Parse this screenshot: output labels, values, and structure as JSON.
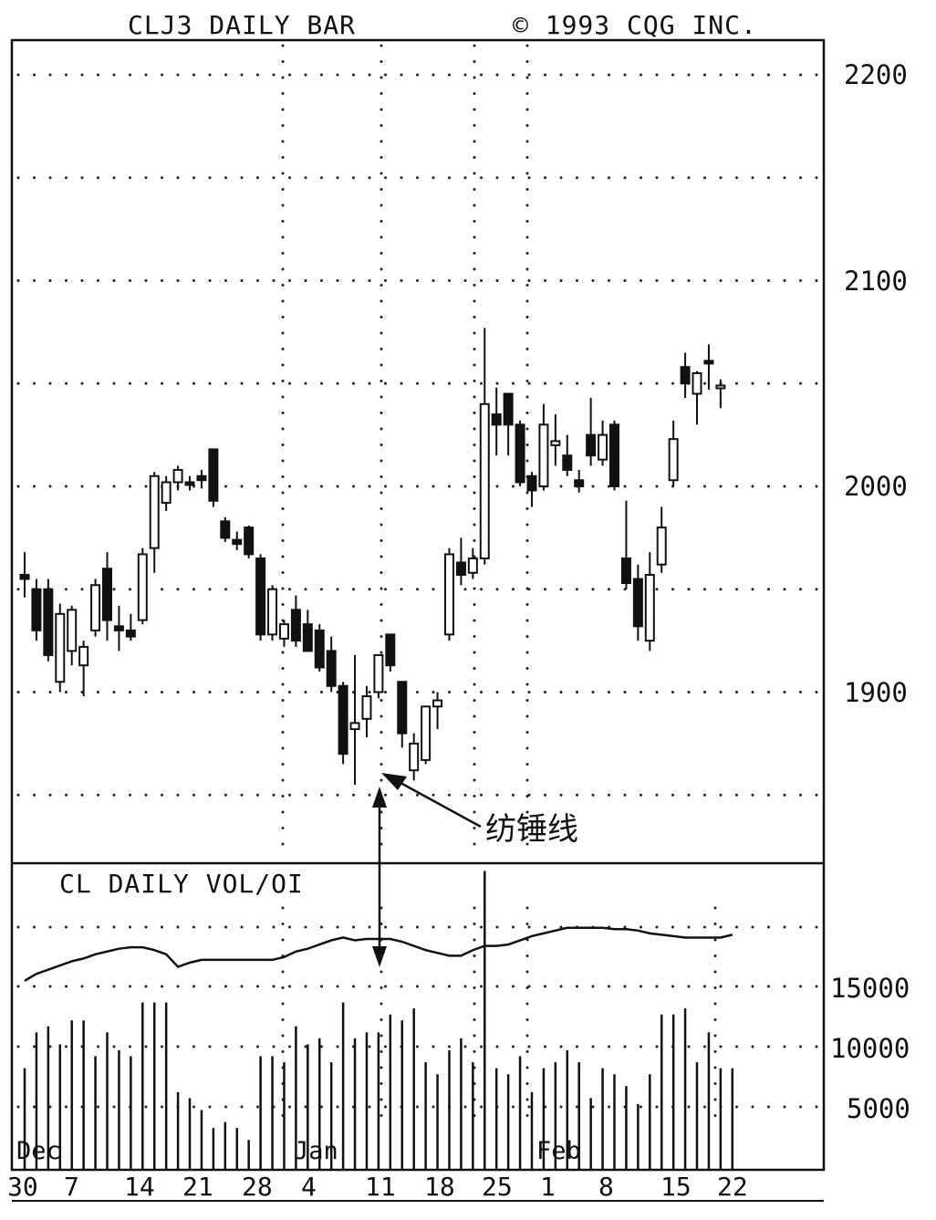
{
  "chart_data": [
    {
      "type": "candlestick",
      "title": "CLJ3 DAILY BAR",
      "copyright": "© 1993 CQG INC.",
      "ylim": [
        1820,
        2230
      ],
      "y_ticks": [
        1900,
        2000,
        2100,
        2200
      ],
      "y_tick_labels": [
        "1900",
        "2000",
        "2100",
        "2200"
      ],
      "grid": "dotted",
      "candles": [
        {
          "date": "Nov 30",
          "open": 1957,
          "high": 1968,
          "low": 1946,
          "close": 1955
        },
        {
          "date": "Dec 1",
          "open": 1950,
          "high": 1955,
          "low": 1925,
          "close": 1930
        },
        {
          "date": "Dec 2",
          "open": 1950,
          "high": 1955,
          "low": 1915,
          "close": 1918
        },
        {
          "date": "Dec 3",
          "open": 1905,
          "high": 1943,
          "low": 1900,
          "close": 1938
        },
        {
          "date": "Dec 4",
          "open": 1920,
          "high": 1942,
          "low": 1913,
          "close": 1940
        },
        {
          "date": "Dec 7",
          "open": 1913,
          "high": 1925,
          "low": 1898,
          "close": 1922
        },
        {
          "date": "Dec 8",
          "open": 1930,
          "high": 1955,
          "low": 1927,
          "close": 1952
        },
        {
          "date": "Dec 9",
          "open": 1960,
          "high": 1968,
          "low": 1925,
          "close": 1935
        },
        {
          "date": "Dec 10",
          "open": 1932,
          "high": 1942,
          "low": 1920,
          "close": 1930
        },
        {
          "date": "Dec 11",
          "open": 1930,
          "high": 1938,
          "low": 1925,
          "close": 1927
        },
        {
          "date": "Dec 14",
          "open": 1935,
          "high": 1970,
          "low": 1933,
          "close": 1967
        },
        {
          "date": "Dec 15",
          "open": 1970,
          "high": 2007,
          "low": 1958,
          "close": 2005
        },
        {
          "date": "Dec 16",
          "open": 1992,
          "high": 2005,
          "low": 1988,
          "close": 2002
        },
        {
          "date": "Dec 17",
          "open": 2002,
          "high": 2010,
          "low": 1998,
          "close": 2008
        },
        {
          "date": "Dec 18",
          "open": 2002,
          "high": 2005,
          "low": 1998,
          "close": 2001
        },
        {
          "date": "Dec 21",
          "open": 2005,
          "high": 2008,
          "low": 1999,
          "close": 2003
        },
        {
          "date": "Dec 22",
          "open": 2018,
          "high": 2018,
          "low": 1990,
          "close": 1993
        },
        {
          "date": "Dec 23",
          "open": 1983,
          "high": 1985,
          "low": 1973,
          "close": 1975
        },
        {
          "date": "Dec 24",
          "open": 1974,
          "high": 1978,
          "low": 1969,
          "close": 1972
        },
        {
          "date": "Dec 28",
          "open": 1980,
          "high": 1981,
          "low": 1965,
          "close": 1967
        },
        {
          "date": "Dec 29",
          "open": 1965,
          "high": 1967,
          "low": 1925,
          "close": 1928
        },
        {
          "date": "Dec 30",
          "open": 1928,
          "high": 1952,
          "low": 1925,
          "close": 1950
        },
        {
          "date": "Dec 31",
          "open": 1926,
          "high": 1935,
          "low": 1922,
          "close": 1933
        },
        {
          "date": "Jan 4",
          "open": 1940,
          "high": 1947,
          "low": 1922,
          "close": 1925
        },
        {
          "date": "Jan 5",
          "open": 1933,
          "high": 1940,
          "low": 1920,
          "close": 1920
        },
        {
          "date": "Jan 6",
          "open": 1930,
          "high": 1933,
          "low": 1910,
          "close": 1912
        },
        {
          "date": "Jan 7",
          "open": 1920,
          "high": 1927,
          "low": 1900,
          "close": 1903
        },
        {
          "date": "Jan 8",
          "open": 1903,
          "high": 1905,
          "low": 1865,
          "close": 1870
        },
        {
          "date": "Jan 11",
          "open": 1882,
          "high": 1918,
          "low": 1855,
          "close": 1885
        },
        {
          "date": "Jan 12",
          "open": 1887,
          "high": 1903,
          "low": 1878,
          "close": 1898
        },
        {
          "date": "Jan 13",
          "open": 1900,
          "high": 1918,
          "low": 1897,
          "close": 1918
        },
        {
          "date": "Jan 14",
          "open": 1928,
          "high": 1928,
          "low": 1910,
          "close": 1913
        },
        {
          "date": "Jan 15",
          "open": 1905,
          "high": 1905,
          "low": 1873,
          "close": 1880
        },
        {
          "date": "Jan 18",
          "open": 1862,
          "high": 1880,
          "low": 1857,
          "close": 1875
        },
        {
          "date": "Jan 19",
          "open": 1867,
          "high": 1893,
          "low": 1865,
          "close": 1893
        },
        {
          "date": "Jan 20",
          "open": 1893,
          "high": 1900,
          "low": 1882,
          "close": 1896
        },
        {
          "date": "Jan 21",
          "open": 1928,
          "high": 1970,
          "low": 1925,
          "close": 1967
        },
        {
          "date": "Jan 22",
          "open": 1963,
          "high": 1975,
          "low": 1952,
          "close": 1957
        },
        {
          "date": "Jan 25",
          "open": 1958,
          "high": 1970,
          "low": 1955,
          "close": 1965
        },
        {
          "date": "Jan 26",
          "open": 1965,
          "high": 2077,
          "low": 1962,
          "close": 2040
        },
        {
          "date": "Jan 27",
          "open": 2035,
          "high": 2048,
          "low": 2015,
          "close": 2030
        },
        {
          "date": "Jan 28",
          "open": 2045,
          "high": 2045,
          "low": 2015,
          "close": 2030
        },
        {
          "date": "Jan 29",
          "open": 2030,
          "high": 2032,
          "low": 2000,
          "close": 2002
        },
        {
          "date": "Feb 1",
          "open": 2005,
          "high": 2007,
          "low": 1990,
          "close": 1998
        },
        {
          "date": "Feb 2",
          "open": 2000,
          "high": 2040,
          "low": 1998,
          "close": 2030
        },
        {
          "date": "Feb 3",
          "open": 2020,
          "high": 2035,
          "low": 2010,
          "close": 2022
        },
        {
          "date": "Feb 4",
          "open": 2015,
          "high": 2025,
          "low": 2005,
          "close": 2008
        },
        {
          "date": "Feb 5",
          "open": 2003,
          "high": 2008,
          "low": 1997,
          "close": 2000
        },
        {
          "date": "Feb 8",
          "open": 2025,
          "high": 2043,
          "low": 2010,
          "close": 2015
        },
        {
          "date": "Feb 9",
          "open": 2013,
          "high": 2032,
          "low": 2010,
          "close": 2025
        },
        {
          "date": "Feb 10",
          "open": 2030,
          "high": 2032,
          "low": 1998,
          "close": 2000
        },
        {
          "date": "Feb 11",
          "open": 1965,
          "high": 1993,
          "low": 1950,
          "close": 1953
        },
        {
          "date": "Feb 12",
          "open": 1955,
          "high": 1962,
          "low": 1925,
          "close": 1932
        },
        {
          "date": "Feb 15",
          "open": 1925,
          "high": 1968,
          "low": 1920,
          "close": 1957
        },
        {
          "date": "Feb 16",
          "open": 1962,
          "high": 1990,
          "low": 1958,
          "close": 1980
        },
        {
          "date": "Feb 17",
          "open": 2003,
          "high": 2032,
          "low": 2000,
          "close": 2023
        },
        {
          "date": "Feb 18",
          "open": 2058,
          "high": 2065,
          "low": 2043,
          "close": 2050
        },
        {
          "date": "Feb 19",
          "open": 2045,
          "high": 2056,
          "low": 2030,
          "close": 2055
        },
        {
          "date": "Feb 22",
          "open": 2061,
          "high": 2069,
          "low": 2047,
          "close": 2060
        },
        {
          "date": "Feb 23",
          "open": 2049,
          "high": 2052,
          "low": 2038,
          "close": 2049
        }
      ],
      "annotation": {
        "text": "纺锤线",
        "date": "Jan 11",
        "price": 1855
      }
    },
    {
      "type": "bar+line",
      "title": "CL DAILY VOL/OI",
      "ylim": [
        0,
        25000
      ],
      "y_ticks": [
        5000,
        10000,
        15000
      ],
      "y_tick_labels": [
        "5000",
        "10000",
        "15000"
      ],
      "volume": [
        8500,
        11500,
        12000,
        10500,
        12500,
        12500,
        9500,
        11500,
        10000,
        9500,
        14000,
        14000,
        14000,
        6500,
        6000,
        5000,
        3500,
        4000,
        3500,
        2500,
        9500,
        9500,
        9000,
        12000,
        10500,
        11000,
        9000,
        14000,
        11000,
        11500,
        11500,
        13000,
        12500,
        13500,
        9000,
        8000,
        10000,
        11000,
        9000,
        25000,
        8500,
        8000,
        9500,
        6500,
        8500,
        9000,
        10000,
        9000,
        6000,
        8500,
        8000,
        7000,
        5500,
        8000,
        13000,
        13000,
        13500,
        9000,
        11500,
        8500,
        8500
      ],
      "open_interest": [
        15400,
        15900,
        16200,
        16500,
        16800,
        17000,
        17300,
        17500,
        17700,
        17800,
        17800,
        17600,
        17300,
        16400,
        16700,
        16900,
        16900,
        16900,
        16900,
        16900,
        16900,
        16900,
        17100,
        17500,
        17700,
        18000,
        18300,
        18500,
        18300,
        18400,
        18400,
        18400,
        18200,
        17900,
        17600,
        17400,
        17200,
        17200,
        17600,
        17900,
        17900,
        18000,
        18300,
        18600,
        18800,
        19000,
        19200,
        19200,
        19200,
        19200,
        19100,
        19100,
        19000,
        18800,
        18700,
        18600,
        18500,
        18500,
        18500,
        18500,
        18700
      ],
      "x_tick_labels": [
        "30",
        "7",
        "14",
        "21",
        "28",
        "4",
        "11",
        "18",
        "25",
        "1",
        "8",
        "15",
        "22"
      ],
      "month_labels": [
        "Dec",
        "Jan",
        "Feb"
      ]
    }
  ]
}
